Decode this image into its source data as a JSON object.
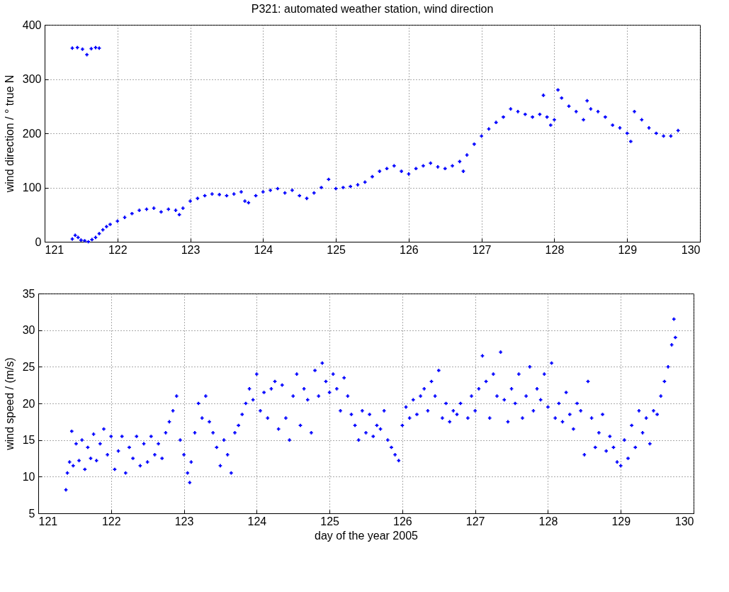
{
  "chart_data": [
    {
      "type": "scatter",
      "title": "P321: automated weather station, wind direction",
      "ylabel": "wind direction / ° true N",
      "color": "#0000ff",
      "marker": "cross",
      "grid": true,
      "xlim": [
        121,
        130
      ],
      "xticks": [
        121,
        122,
        123,
        124,
        125,
        126,
        127,
        128,
        129,
        130
      ],
      "ylim": [
        0,
        400
      ],
      "yticks": [
        0,
        100,
        200,
        300,
        400
      ],
      "x": [
        121.38,
        121.42,
        121.46,
        121.5,
        121.55,
        121.6,
        121.65,
        121.7,
        121.75,
        121.8,
        121.85,
        121.9,
        122.0,
        122.1,
        122.2,
        122.3,
        122.4,
        122.5,
        122.6,
        122.7,
        122.8,
        122.85,
        122.9,
        123.0,
        123.1,
        123.2,
        123.3,
        123.4,
        123.5,
        123.6,
        123.7,
        123.75,
        123.8,
        123.9,
        124.0,
        124.1,
        124.2,
        124.3,
        124.4,
        124.5,
        124.6,
        124.7,
        124.8,
        124.9,
        125.0,
        125.1,
        125.2,
        125.3,
        125.4,
        125.5,
        125.6,
        125.7,
        125.8,
        125.9,
        126.0,
        126.1,
        126.2,
        126.3,
        126.4,
        126.5,
        126.6,
        126.7,
        126.75,
        126.8,
        126.9,
        127.0,
        127.1,
        127.2,
        127.3,
        127.4,
        127.5,
        127.6,
        127.7,
        127.8,
        127.85,
        127.9,
        127.95,
        128.0,
        128.05,
        128.1,
        128.2,
        128.3,
        128.4,
        128.45,
        128.5,
        128.6,
        128.7,
        128.8,
        128.9,
        129.0,
        129.05,
        129.1,
        129.2,
        129.3,
        129.4,
        129.5,
        129.6,
        129.7,
        121.38,
        121.45,
        121.52,
        121.58,
        121.64,
        121.7,
        121.75
      ],
      "values": [
        5,
        12,
        8,
        3,
        2,
        0,
        4,
        8,
        15,
        22,
        28,
        32,
        38,
        45,
        52,
        58,
        60,
        62,
        55,
        60,
        58,
        50,
        62,
        75,
        80,
        85,
        88,
        87,
        85,
        88,
        92,
        75,
        72,
        85,
        92,
        95,
        98,
        90,
        95,
        85,
        80,
        90,
        100,
        115,
        98,
        100,
        102,
        105,
        110,
        120,
        130,
        135,
        140,
        130,
        125,
        135,
        140,
        145,
        138,
        135,
        140,
        148,
        130,
        160,
        180,
        195,
        208,
        220,
        230,
        245,
        240,
        235,
        230,
        235,
        270,
        230,
        215,
        225,
        280,
        265,
        250,
        240,
        225,
        260,
        245,
        240,
        230,
        215,
        210,
        200,
        185,
        240,
        225,
        210,
        200,
        195,
        195,
        205,
        357,
        358,
        355,
        345,
        356,
        358,
        357
      ]
    },
    {
      "type": "scatter",
      "xlabel": "day of the year 2005",
      "ylabel": "wind speed / (m/s)",
      "color": "#0000ff",
      "marker": "cross",
      "grid": true,
      "xlim": [
        121,
        130
      ],
      "xticks": [
        121,
        122,
        123,
        124,
        125,
        126,
        127,
        128,
        129,
        130
      ],
      "ylim": [
        5,
        35
      ],
      "yticks": [
        5,
        10,
        15,
        20,
        25,
        30,
        35
      ],
      "x": [
        121.38,
        121.4,
        121.43,
        121.46,
        121.48,
        121.52,
        121.56,
        121.6,
        121.64,
        121.68,
        121.72,
        121.76,
        121.8,
        121.85,
        121.9,
        121.95,
        122.0,
        122.05,
        122.1,
        122.15,
        122.2,
        122.25,
        122.3,
        122.35,
        122.4,
        122.45,
        122.5,
        122.55,
        122.6,
        122.65,
        122.7,
        122.75,
        122.8,
        122.85,
        122.9,
        122.95,
        123.0,
        123.05,
        123.08,
        123.1,
        123.15,
        123.2,
        123.25,
        123.3,
        123.35,
        123.4,
        123.45,
        123.5,
        123.55,
        123.6,
        123.65,
        123.7,
        123.75,
        123.8,
        123.85,
        123.9,
        123.95,
        124.0,
        124.05,
        124.1,
        124.15,
        124.2,
        124.25,
        124.3,
        124.35,
        124.4,
        124.45,
        124.5,
        124.55,
        124.6,
        124.65,
        124.7,
        124.75,
        124.8,
        124.85,
        124.9,
        124.95,
        125.0,
        125.05,
        125.1,
        125.15,
        125.2,
        125.25,
        125.3,
        125.35,
        125.4,
        125.45,
        125.5,
        125.55,
        125.6,
        125.65,
        125.7,
        125.75,
        125.8,
        125.85,
        125.9,
        125.95,
        126.0,
        126.05,
        126.1,
        126.15,
        126.2,
        126.25,
        126.3,
        126.35,
        126.4,
        126.45,
        126.5,
        126.55,
        126.6,
        126.65,
        126.7,
        126.75,
        126.8,
        126.9,
        126.95,
        127.0,
        127.05,
        127.1,
        127.15,
        127.2,
        127.25,
        127.3,
        127.35,
        127.4,
        127.45,
        127.5,
        127.55,
        127.6,
        127.65,
        127.7,
        127.75,
        127.8,
        127.85,
        127.9,
        127.95,
        128.0,
        128.05,
        128.1,
        128.15,
        128.2,
        128.25,
        128.3,
        128.35,
        128.4,
        128.45,
        128.5,
        128.55,
        128.6,
        128.65,
        128.7,
        128.75,
        128.8,
        128.85,
        128.9,
        128.95,
        129.0,
        129.05,
        129.1,
        129.15,
        129.2,
        129.25,
        129.3,
        129.35,
        129.4,
        129.45,
        129.5,
        129.55,
        129.6,
        129.65,
        129.7,
        129.73,
        129.75
      ],
      "values": [
        8.2,
        10.5,
        12,
        16.2,
        11.5,
        14.5,
        12.2,
        15,
        11,
        14,
        12.5,
        15.8,
        12.2,
        14.5,
        16.5,
        13,
        15.5,
        11,
        13.5,
        15.5,
        10.5,
        14,
        12.5,
        15.5,
        11.5,
        14.5,
        12,
        15.5,
        13,
        14.5,
        12.5,
        16,
        17.5,
        19,
        21,
        15,
        13,
        10.5,
        9.2,
        12,
        16,
        20,
        18,
        21,
        17.5,
        16,
        14,
        11.5,
        15,
        13,
        10.5,
        16,
        17,
        18.5,
        20,
        22,
        20.5,
        24,
        19,
        21.5,
        18,
        22,
        23,
        16.5,
        22.5,
        18,
        15,
        21,
        24,
        17,
        22,
        20.5,
        16,
        24.5,
        21,
        25.5,
        23,
        21.5,
        24,
        22,
        19,
        23.5,
        21,
        18.5,
        17,
        15,
        19,
        16,
        18.5,
        15.5,
        17,
        16.5,
        19,
        15,
        14,
        13,
        12.2,
        17,
        19.5,
        18,
        20.5,
        18.5,
        21,
        22,
        19,
        23,
        21,
        24.5,
        18,
        20,
        17.5,
        19,
        18.5,
        20,
        18,
        21,
        19,
        22,
        26.5,
        23,
        18,
        24,
        21,
        27,
        20.5,
        17.5,
        22,
        20,
        24,
        18,
        21,
        25,
        19,
        22,
        20.5,
        24,
        19.5,
        25.5,
        18,
        20,
        17.5,
        21.5,
        18.5,
        16.5,
        20,
        19,
        13,
        23,
        18,
        14,
        16,
        18.5,
        13.5,
        15.5,
        14,
        12,
        11.5,
        15,
        12.5,
        17,
        14,
        19,
        16,
        18,
        14.5,
        19,
        18.5,
        21,
        23,
        25,
        28,
        31.5,
        29
      ]
    }
  ]
}
